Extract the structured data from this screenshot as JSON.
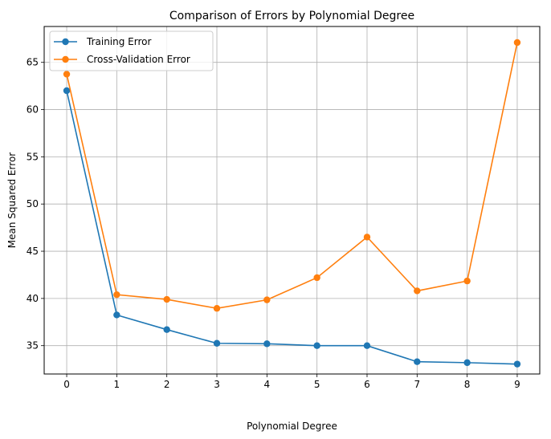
{
  "chart_data": {
    "type": "line",
    "title": "Comparison of Errors by Polynomial Degree",
    "xlabel": "Polynomial Degree",
    "ylabel": "Mean Squared Error",
    "x": [
      0,
      1,
      2,
      3,
      4,
      5,
      6,
      7,
      8,
      9
    ],
    "xlim": [
      -0.45,
      9.45
    ],
    "ylim": [
      32.0,
      68.8
    ],
    "xticks": [
      "0",
      "1",
      "2",
      "3",
      "4",
      "5",
      "6",
      "7",
      "8",
      "9"
    ],
    "yticks": [
      35,
      40,
      45,
      50,
      55,
      60,
      65
    ],
    "grid": true,
    "legend_position": "top-left",
    "series": [
      {
        "name": "Training Error",
        "color": "#1f77b4",
        "marker": "circle",
        "values": [
          62.0,
          38.25,
          36.7,
          35.25,
          35.2,
          35.0,
          35.0,
          33.3,
          33.2,
          33.05
        ]
      },
      {
        "name": "Cross-Validation Error",
        "color": "#ff7f0e",
        "marker": "circle",
        "values": [
          63.75,
          40.4,
          39.9,
          38.95,
          39.85,
          42.2,
          46.5,
          40.8,
          41.85,
          67.1
        ]
      }
    ]
  }
}
